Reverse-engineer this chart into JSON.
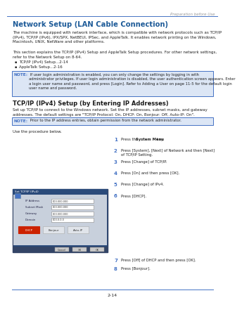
{
  "page_header_right": "Preparation before Use",
  "page_number": "2-14",
  "title": "Network Setup (LAN Cable Connection)",
  "body_text1": "The machine is equipped with network interface, which is compatible with network protocols such as TCP/IP\n(IPv4), TCP/IP (IPv6), IPX/SPX, NetBEUI, IPSec, and AppleTalk. It enables network printing on the Windows,\nMacintosh, UNIX, NetWare and other platforms.",
  "body_text2": "This section explains the TCP/IP (IPv4) Setup and AppleTalk Setup procedures. For other network settings,\nrefer to the Network Setup on 8-64.",
  "bullet1": "TCP/IP (IPv4) Setup...2-14",
  "bullet2": "AppleTalk Setup...2-16",
  "note1_label": "NOTE:",
  "note1_text": " If user login administration is enabled, you can only change the settings by logging in with\nadministrator privileges. If user login administration is disabled, the user authentication screen appears. Enter\na login user name and password, and press [Login]. Refer to Adding a User on page 11-5 for the default login\nuser name and password.",
  "section_title2": "TCP/IP (IPv4) Setup (by Entering IP Addresses)",
  "setup_desc": "Set up TCP/IP to connect to the Windows network. Set the IP addresses, subnet masks, and gateway\naddresses. The default settings are \"TCP/IP Protocol: On, DHCP: On, Bonjour: Off, Auto-IP: On\".",
  "note2_label": "NOTE:",
  "note2_text": " Prior to the IP address entries, obtain permission from the network administrator.",
  "use_procedure": "Use the procedure below.",
  "steps_right": [
    [
      "1",
      "Press the ",
      "System Menu",
      " key."
    ],
    [
      "2",
      "Press [System], [Next] of Network and then [Next]\nof TCP/IP Setting."
    ],
    [
      "3",
      "Press [Change] of TCP/IP."
    ],
    [
      "4",
      "Press [On] and then press [OK]."
    ],
    [
      "5",
      "Press [Change] of IPv4."
    ],
    [
      "6",
      "Press [DHCP]."
    ]
  ],
  "steps_below": [
    [
      "7",
      "Press [Off] of DHCP and then press [OK]."
    ],
    [
      "8",
      "Press [Bonjour]."
    ]
  ],
  "header_line_color": "#4472c4",
  "title_color": "#1f5c99",
  "note_bg": "#dce6f5",
  "note_border": "#4472c4",
  "section_title_color": "#1a1a1a",
  "step_number_color": "#4472c4",
  "text_color": "#222222",
  "header_text_color": "#999999",
  "footer_line_color": "#4472c4",
  "screen_bg": "#2a4a7a",
  "screen_inner_bg": "#d0d8e8",
  "screen_title_bg": "#4472c4",
  "screen_field_bg": "#ffffff",
  "screen_button_active": "#cc2200",
  "screen_button_bg": "#e0e4ea"
}
